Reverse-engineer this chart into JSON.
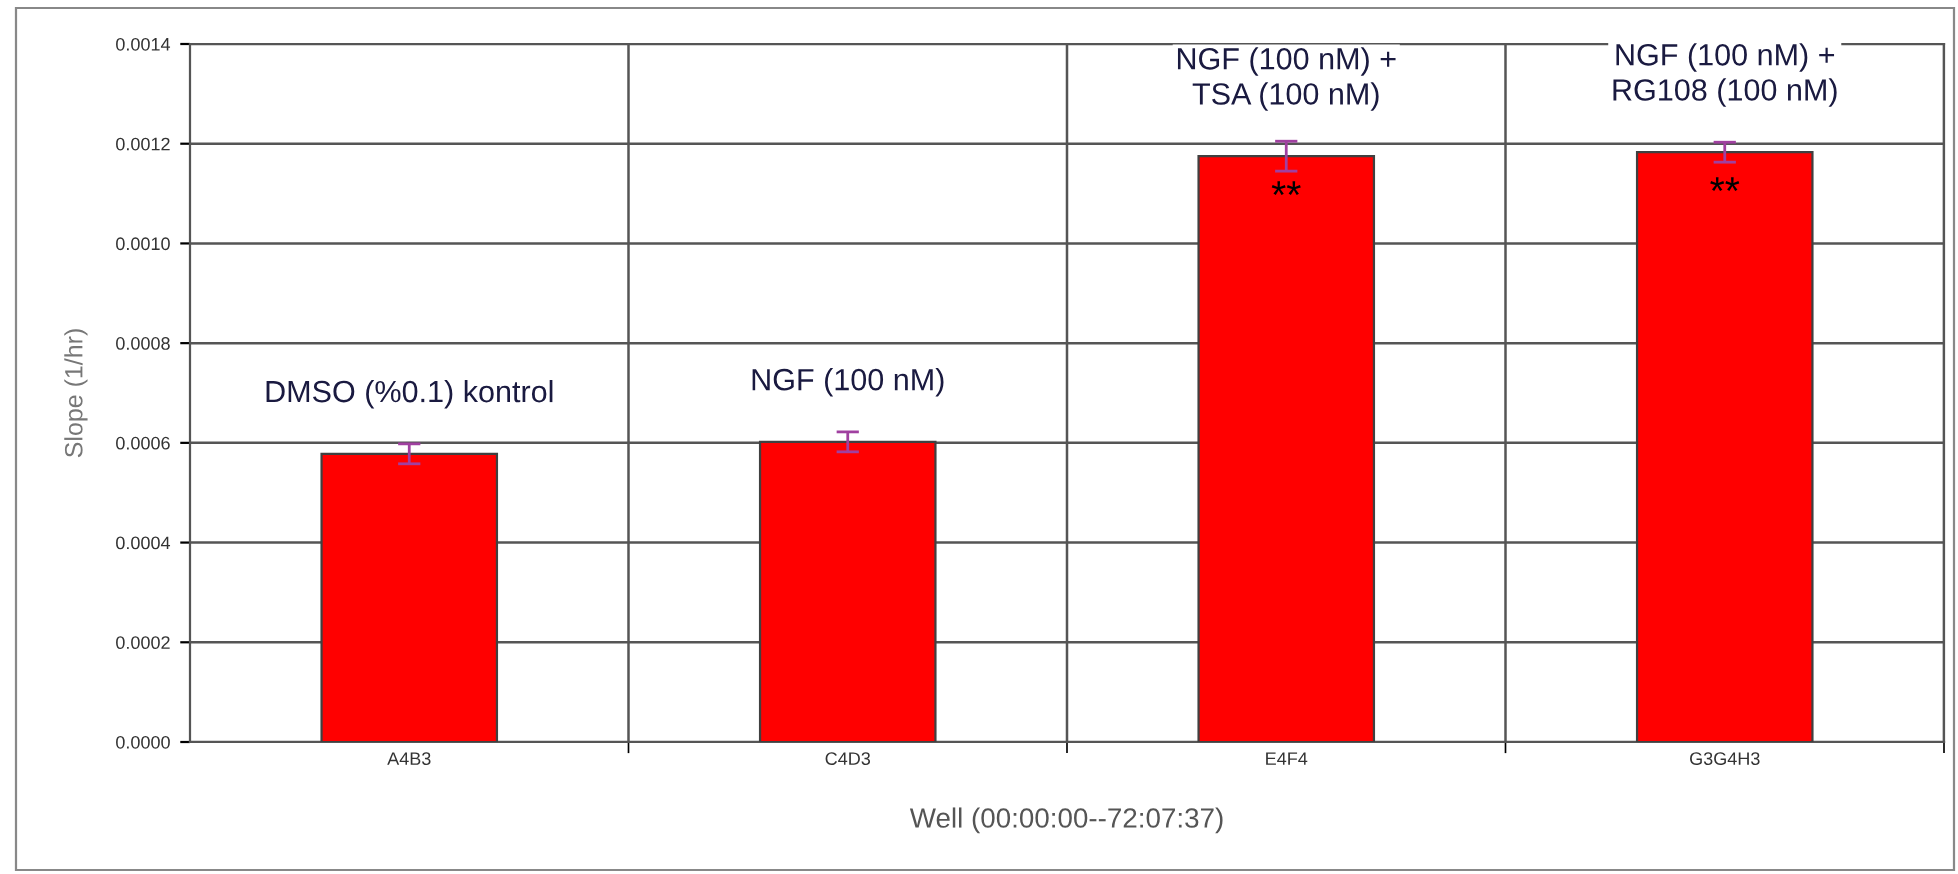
{
  "chart_data": {
    "type": "bar",
    "xlabel": "Well (00:00:00--72:07:37)",
    "ylabel": "Slope (1/hr)",
    "categories": [
      "A4B3",
      "C4D3",
      "E4F4",
      "G3G4H3"
    ],
    "values": [
      0.000578,
      0.000602,
      0.001175,
      0.001183
    ],
    "errors": [
      2e-05,
      2e-05,
      3e-05,
      2e-05
    ],
    "color": "#ff0000",
    "ylim": [
      0,
      0.0014
    ],
    "yticks": [
      {
        "value": 0,
        "label": "0.0000"
      },
      {
        "value": 0.0002,
        "label": "0.0002"
      },
      {
        "value": 0.0004,
        "label": "0.0004"
      },
      {
        "value": 0.0006,
        "label": "0.0006"
      },
      {
        "value": 0.0008,
        "label": "0.0008"
      },
      {
        "value": 0.001,
        "label": "0.0010"
      },
      {
        "value": 0.0012,
        "label": "0.0012"
      },
      {
        "value": 0.0014,
        "label": "0.0014"
      }
    ],
    "grid": true,
    "annotations": [
      "DMSO (%0.1) kontrol",
      "NGF (100 nM)",
      "NGF (100 nM) +\nTSA (100 nM)",
      "NGF (100 nM) +\nRG108 (100 nM)",
      "**",
      "**"
    ]
  }
}
